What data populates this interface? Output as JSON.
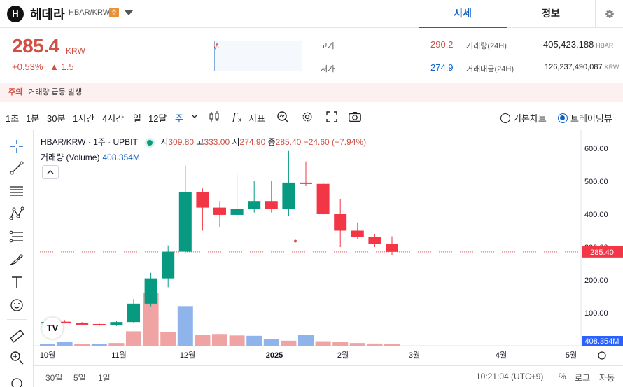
{
  "header": {
    "logo_letter": "H",
    "coin_name": "헤데라",
    "pair": "HBAR/KRW",
    "warn_tag": "주",
    "tabs": [
      {
        "label": "시세"
      },
      {
        "label": "정보"
      }
    ]
  },
  "price": {
    "value": "285.4",
    "unit": "KRW",
    "change_pct": "+0.53%",
    "change_abs": "▲ 1.5"
  },
  "stats": {
    "high_label": "고가",
    "high": "290.2",
    "low_label": "저가",
    "low": "274.9",
    "volume_label": "거래량(24H)",
    "volume": "405,423,188",
    "volume_unit": "HBAR",
    "amount_label": "거래대금(24H)",
    "amount": "126,237,490,087",
    "amount_unit": "KRW"
  },
  "notice": {
    "tag": "주의",
    "text": "거래량 급등 발생"
  },
  "toolbar": {
    "timeframes": [
      "1초",
      "1분",
      "30분",
      "1시간",
      "4시간",
      "일",
      "12달",
      "주"
    ],
    "active_timeframe": "주",
    "indicator_label": "지표",
    "radio_basic": "기본차트",
    "radio_trading": "트레이딩뷰"
  },
  "legend": {
    "symbol": "HBAR/KRW · 1주 · UPBIT",
    "o_label": "시",
    "o": "309.80",
    "h_label": "고",
    "h": "333.00",
    "l_label": "저",
    "l": "274.90",
    "c_label": "종",
    "c": "285.40",
    "chg": "−24.60 (−7.94%)",
    "vol_label": "거래량 (Volume)",
    "vol_value": "408.354M"
  },
  "chart_data": {
    "type": "candlestick",
    "y_ticks": [
      "600.00",
      "500.00",
      "400.00",
      "300.00",
      "200.00",
      "100.00"
    ],
    "x_ticks": [
      "10월",
      "11월",
      "12월",
      "2025",
      "2월",
      "3월",
      "4월",
      "5월"
    ],
    "ylim": [
      0,
      640
    ],
    "price_tag": "285.40",
    "volume_tag": "408.354M",
    "candles": [
      {
        "o": 70,
        "h": 75,
        "l": 65,
        "c": 72
      },
      {
        "o": 73,
        "h": 78,
        "l": 68,
        "c": 68
      },
      {
        "o": 70,
        "h": 72,
        "l": 62,
        "c": 64
      },
      {
        "o": 66,
        "h": 70,
        "l": 60,
        "c": 62
      },
      {
        "o": 62,
        "h": 75,
        "l": 60,
        "c": 72
      },
      {
        "o": 72,
        "h": 142,
        "l": 70,
        "c": 128
      },
      {
        "o": 128,
        "h": 222,
        "l": 120,
        "c": 205
      },
      {
        "o": 205,
        "h": 305,
        "l": 178,
        "c": 286
      },
      {
        "o": 286,
        "h": 548,
        "l": 280,
        "c": 466
      },
      {
        "o": 466,
        "h": 478,
        "l": 350,
        "c": 420
      },
      {
        "o": 420,
        "h": 440,
        "l": 360,
        "c": 398
      },
      {
        "o": 398,
        "h": 520,
        "l": 385,
        "c": 415
      },
      {
        "o": 415,
        "h": 500,
        "l": 405,
        "c": 440
      },
      {
        "o": 440,
        "h": 500,
        "l": 405,
        "c": 415
      },
      {
        "o": 415,
        "h": 592,
        "l": 395,
        "c": 496
      },
      {
        "o": 496,
        "h": 560,
        "l": 485,
        "c": 492
      },
      {
        "o": 492,
        "h": 500,
        "l": 395,
        "c": 400
      },
      {
        "o": 400,
        "h": 445,
        "l": 300,
        "c": 350
      },
      {
        "o": 350,
        "h": 375,
        "l": 325,
        "c": 330
      },
      {
        "o": 330,
        "h": 340,
        "l": 300,
        "c": 310
      },
      {
        "o": 309.8,
        "h": 333,
        "l": 274.9,
        "c": 285.4
      }
    ],
    "volumes": [
      {
        "v": 10,
        "up": false
      },
      {
        "v": 20,
        "up": false
      },
      {
        "v": 9,
        "up": true
      },
      {
        "v": 11,
        "up": false
      },
      {
        "v": 15,
        "up": true
      },
      {
        "v": 80,
        "up": true
      },
      {
        "v": 295,
        "up": true
      },
      {
        "v": 75,
        "up": true
      },
      {
        "v": 220,
        "up": false
      },
      {
        "v": 60,
        "up": true
      },
      {
        "v": 65,
        "up": true
      },
      {
        "v": 57,
        "up": true
      },
      {
        "v": 55,
        "up": false
      },
      {
        "v": 35,
        "up": false
      },
      {
        "v": 28,
        "up": true
      },
      {
        "v": 60,
        "up": false
      },
      {
        "v": 25,
        "up": true
      },
      {
        "v": 20,
        "up": true
      },
      {
        "v": 15,
        "up": true
      },
      {
        "v": 12,
        "up": true
      },
      {
        "v": 8,
        "up": true
      }
    ]
  },
  "bottom": {
    "ranges": [
      "30일",
      "5일",
      "1일"
    ],
    "time": "10:21:04 (UTC+9)",
    "pct": "%",
    "log": "로그",
    "auto": "자동"
  }
}
